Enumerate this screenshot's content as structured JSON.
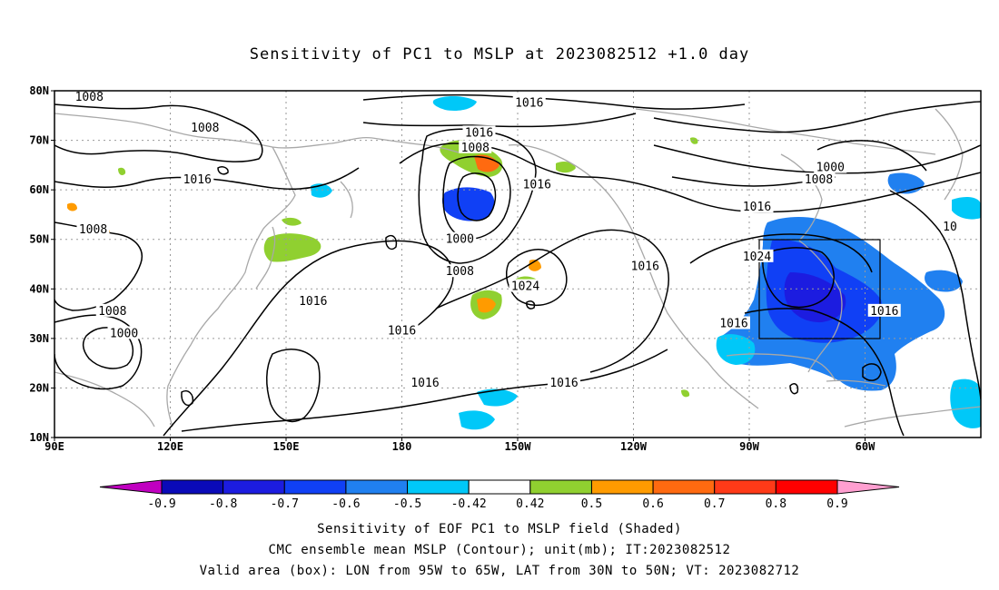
{
  "title": "Sensitivity of PC1 to MSLP at 2023082512 +1.0 day",
  "map": {
    "lat_labels": [
      "80N",
      "70N",
      "60N",
      "50N",
      "40N",
      "30N",
      "20N",
      "10N"
    ],
    "lon_labels": [
      "90E",
      "120E",
      "150E",
      "180",
      "150W",
      "120W",
      "90W",
      "60W"
    ],
    "contour_labels": [
      {
        "text": "1008",
        "lon": 99,
        "lat": 78.7
      },
      {
        "text": "1008",
        "lon": 129,
        "lat": 72.5
      },
      {
        "text": "1016",
        "lon": 127,
        "lat": 62.0
      },
      {
        "text": "1008",
        "lon": 100,
        "lat": 52.0
      },
      {
        "text": "1008",
        "lon": 105,
        "lat": 35.5
      },
      {
        "text": "1000",
        "lon": 108,
        "lat": 31.0
      },
      {
        "text": "1016",
        "lon": 157,
        "lat": 37.5
      },
      {
        "text": "1016",
        "lon": 180,
        "lat": 31.5
      },
      {
        "text": "1016",
        "lon": 186,
        "lat": 21.0
      },
      {
        "text": "1016",
        "lon": 213,
        "lat": 77.5
      },
      {
        "text": "1016",
        "lon": 200,
        "lat": 71.5
      },
      {
        "text": "1008",
        "lon": 199,
        "lat": 68.5
      },
      {
        "text": "1016",
        "lon": 215,
        "lat": 61.0
      },
      {
        "text": "1000",
        "lon": 195,
        "lat": 50.0
      },
      {
        "text": "1008",
        "lon": 195,
        "lat": 43.5
      },
      {
        "text": "1024",
        "lon": 212,
        "lat": 40.5
      },
      {
        "text": "1016",
        "lon": 222,
        "lat": 21.0
      },
      {
        "text": "1016",
        "lon": 243,
        "lat": 44.5
      },
      {
        "text": "1016",
        "lon": 272,
        "lat": 56.5
      },
      {
        "text": "1024",
        "lon": 272,
        "lat": 46.5
      },
      {
        "text": "1016",
        "lon": 266,
        "lat": 33.0
      },
      {
        "text": "1008",
        "lon": 288,
        "lat": 62.0
      },
      {
        "text": "1000",
        "lon": 291,
        "lat": 64.5
      },
      {
        "text": "1016",
        "lon": 305,
        "lat": 35.5
      },
      {
        "text": "10",
        "lon": 322,
        "lat": 52.5
      }
    ]
  },
  "colorbar": {
    "labels": [
      "-0.9",
      "-0.8",
      "-0.7",
      "-0.6",
      "-0.5",
      "-0.42",
      "0.42",
      "0.5",
      "0.6",
      "0.7",
      "0.8",
      "0.9"
    ],
    "colors": [
      "#c000c0",
      "#0a0ab8",
      "#1c1ce0",
      "#1040f5",
      "#2080f0",
      "#00c8f8",
      "#ffffff",
      "#90d030",
      "#ff9b00",
      "#ff6a10",
      "#ff3a18",
      "#ff0000",
      "#ff9fd0"
    ]
  },
  "footer": {
    "line1": "Sensitivity of EOF PC1 to MSLP field (Shaded)",
    "line2": "CMC ensemble mean MSLP (Contour); unit(mb); IT:2023082512",
    "line3": "Valid area (box): LON from 95W to 65W, LAT from 30N to 50N; VT: 2023082712"
  }
}
